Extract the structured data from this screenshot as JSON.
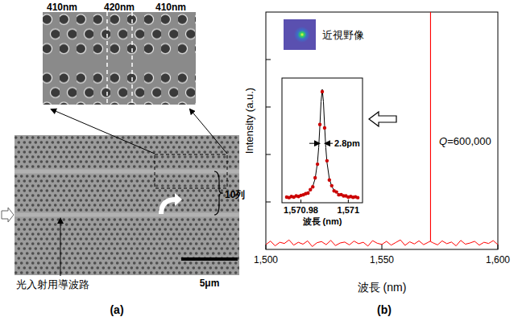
{
  "panel_a": {
    "label": "(a)",
    "dimensions": [
      "410nm",
      "420nm",
      "410nm"
    ],
    "rows_label": "10列",
    "waveguide_label": "光入射用導波路",
    "scale_bar": "5μm"
  },
  "chart_data": {
    "type": "line",
    "label": "(b)",
    "x_label": "波長 (nm)",
    "y_label": "Intensity (a.u.)",
    "x": [
      1500,
      1502,
      1504,
      1506,
      1508,
      1510,
      1512,
      1514,
      1516,
      1518,
      1520,
      1522,
      1524,
      1526,
      1528,
      1530,
      1532,
      1534,
      1536,
      1538,
      1540,
      1542,
      1544,
      1546,
      1548,
      1550,
      1552,
      1554,
      1556,
      1558,
      1560,
      1562,
      1564,
      1566,
      1568,
      1570,
      1570.98,
      1570.99,
      1571,
      1572,
      1574,
      1576,
      1578,
      1580,
      1582,
      1584,
      1586,
      1588,
      1590,
      1592,
      1594,
      1596,
      1598,
      1600
    ],
    "values": [
      0.02,
      0.035,
      0.015,
      0.03,
      0.025,
      0.04,
      0.018,
      0.03,
      0.022,
      0.036,
      0.012,
      0.028,
      0.033,
      0.02,
      0.038,
      0.016,
      0.027,
      0.031,
      0.019,
      0.035,
      0.024,
      0.03,
      0.014,
      0.037,
      0.026,
      0.021,
      0.034,
      0.018,
      0.029,
      0.04,
      0.017,
      0.032,
      0.023,
      0.036,
      0.02,
      0.03,
      0.035,
      1.0,
      0.033,
      0.028,
      0.019,
      0.036,
      0.024,
      0.031,
      0.015,
      0.038,
      0.022,
      0.027,
      0.034,
      0.018,
      0.03,
      0.025,
      0.037,
      0.02
    ],
    "color": "#ff0000",
    "xlim": [
      1500,
      1600
    ],
    "xticks": [
      {
        "value": 1500,
        "label": "1,500"
      },
      {
        "value": 1550,
        "label": "1,550"
      },
      {
        "value": 1600,
        "label": "1,600"
      }
    ],
    "ylim": [
      0,
      1
    ],
    "yticks": [
      0.2,
      0.4,
      0.6,
      0.8
    ],
    "tick_labels": "x",
    "annotations": {
      "q": "Q=600,000",
      "near_field": "近視野像",
      "fwhm": "2.8pm"
    },
    "inset": {
      "type": "scatter",
      "x_label": "波長 (nm)",
      "color": "#cc0000",
      "marker": "circle",
      "x": [
        1570.974,
        1570.975,
        1570.976,
        1570.977,
        1570.978,
        1570.979,
        1570.98,
        1570.981,
        1570.982,
        1570.983,
        1570.984,
        1570.985,
        1570.986,
        1570.987,
        1570.988,
        1570.989,
        1570.99,
        1570.991,
        1570.992,
        1570.993,
        1570.994,
        1570.995,
        1570.996,
        1570.997,
        1570.998,
        1570.999,
        1571.0,
        1571.001,
        1571.002,
        1571.003,
        1571.004
      ],
      "values": [
        0.05,
        0.045,
        0.055,
        0.05,
        0.06,
        0.055,
        0.065,
        0.07,
        0.08,
        0.085,
        0.115,
        0.14,
        0.22,
        0.34,
        0.69,
        0.98,
        0.66,
        0.37,
        0.2,
        0.15,
        0.105,
        0.095,
        0.07,
        0.072,
        0.06,
        0.06,
        0.05,
        0.055,
        0.048,
        0.052,
        0.045
      ],
      "fit": {
        "x": [
          1570.974,
          1570.975,
          1570.976,
          1570.977,
          1570.978,
          1570.979,
          1570.98,
          1570.981,
          1570.982,
          1570.983,
          1570.984,
          1570.985,
          1570.986,
          1570.987,
          1570.9875,
          1570.988,
          1570.9885,
          1570.989,
          1570.9895,
          1570.99,
          1570.9905,
          1570.991,
          1570.992,
          1570.993,
          1570.994,
          1570.995,
          1570.996,
          1570.997,
          1570.998,
          1570.999,
          1571.0,
          1571.001,
          1571.002,
          1571.003,
          1571.004
        ],
        "values": [
          0.049,
          0.049,
          0.05,
          0.052,
          0.055,
          0.058,
          0.063,
          0.069,
          0.076,
          0.09,
          0.11,
          0.145,
          0.212,
          0.356,
          0.486,
          0.676,
          0.891,
          1.0,
          0.891,
          0.676,
          0.486,
          0.356,
          0.212,
          0.145,
          0.11,
          0.09,
          0.076,
          0.069,
          0.063,
          0.058,
          0.055,
          0.052,
          0.05,
          0.049,
          0.049
        ]
      },
      "xlim": [
        1570.972,
        1571.006
      ],
      "xticks": [
        {
          "value": 1570.98,
          "label": "1,570.98"
        },
        {
          "value": 1571,
          "label": "1,571"
        }
      ],
      "ylim": [
        0,
        1.1
      ],
      "tick_labels": "x"
    }
  }
}
